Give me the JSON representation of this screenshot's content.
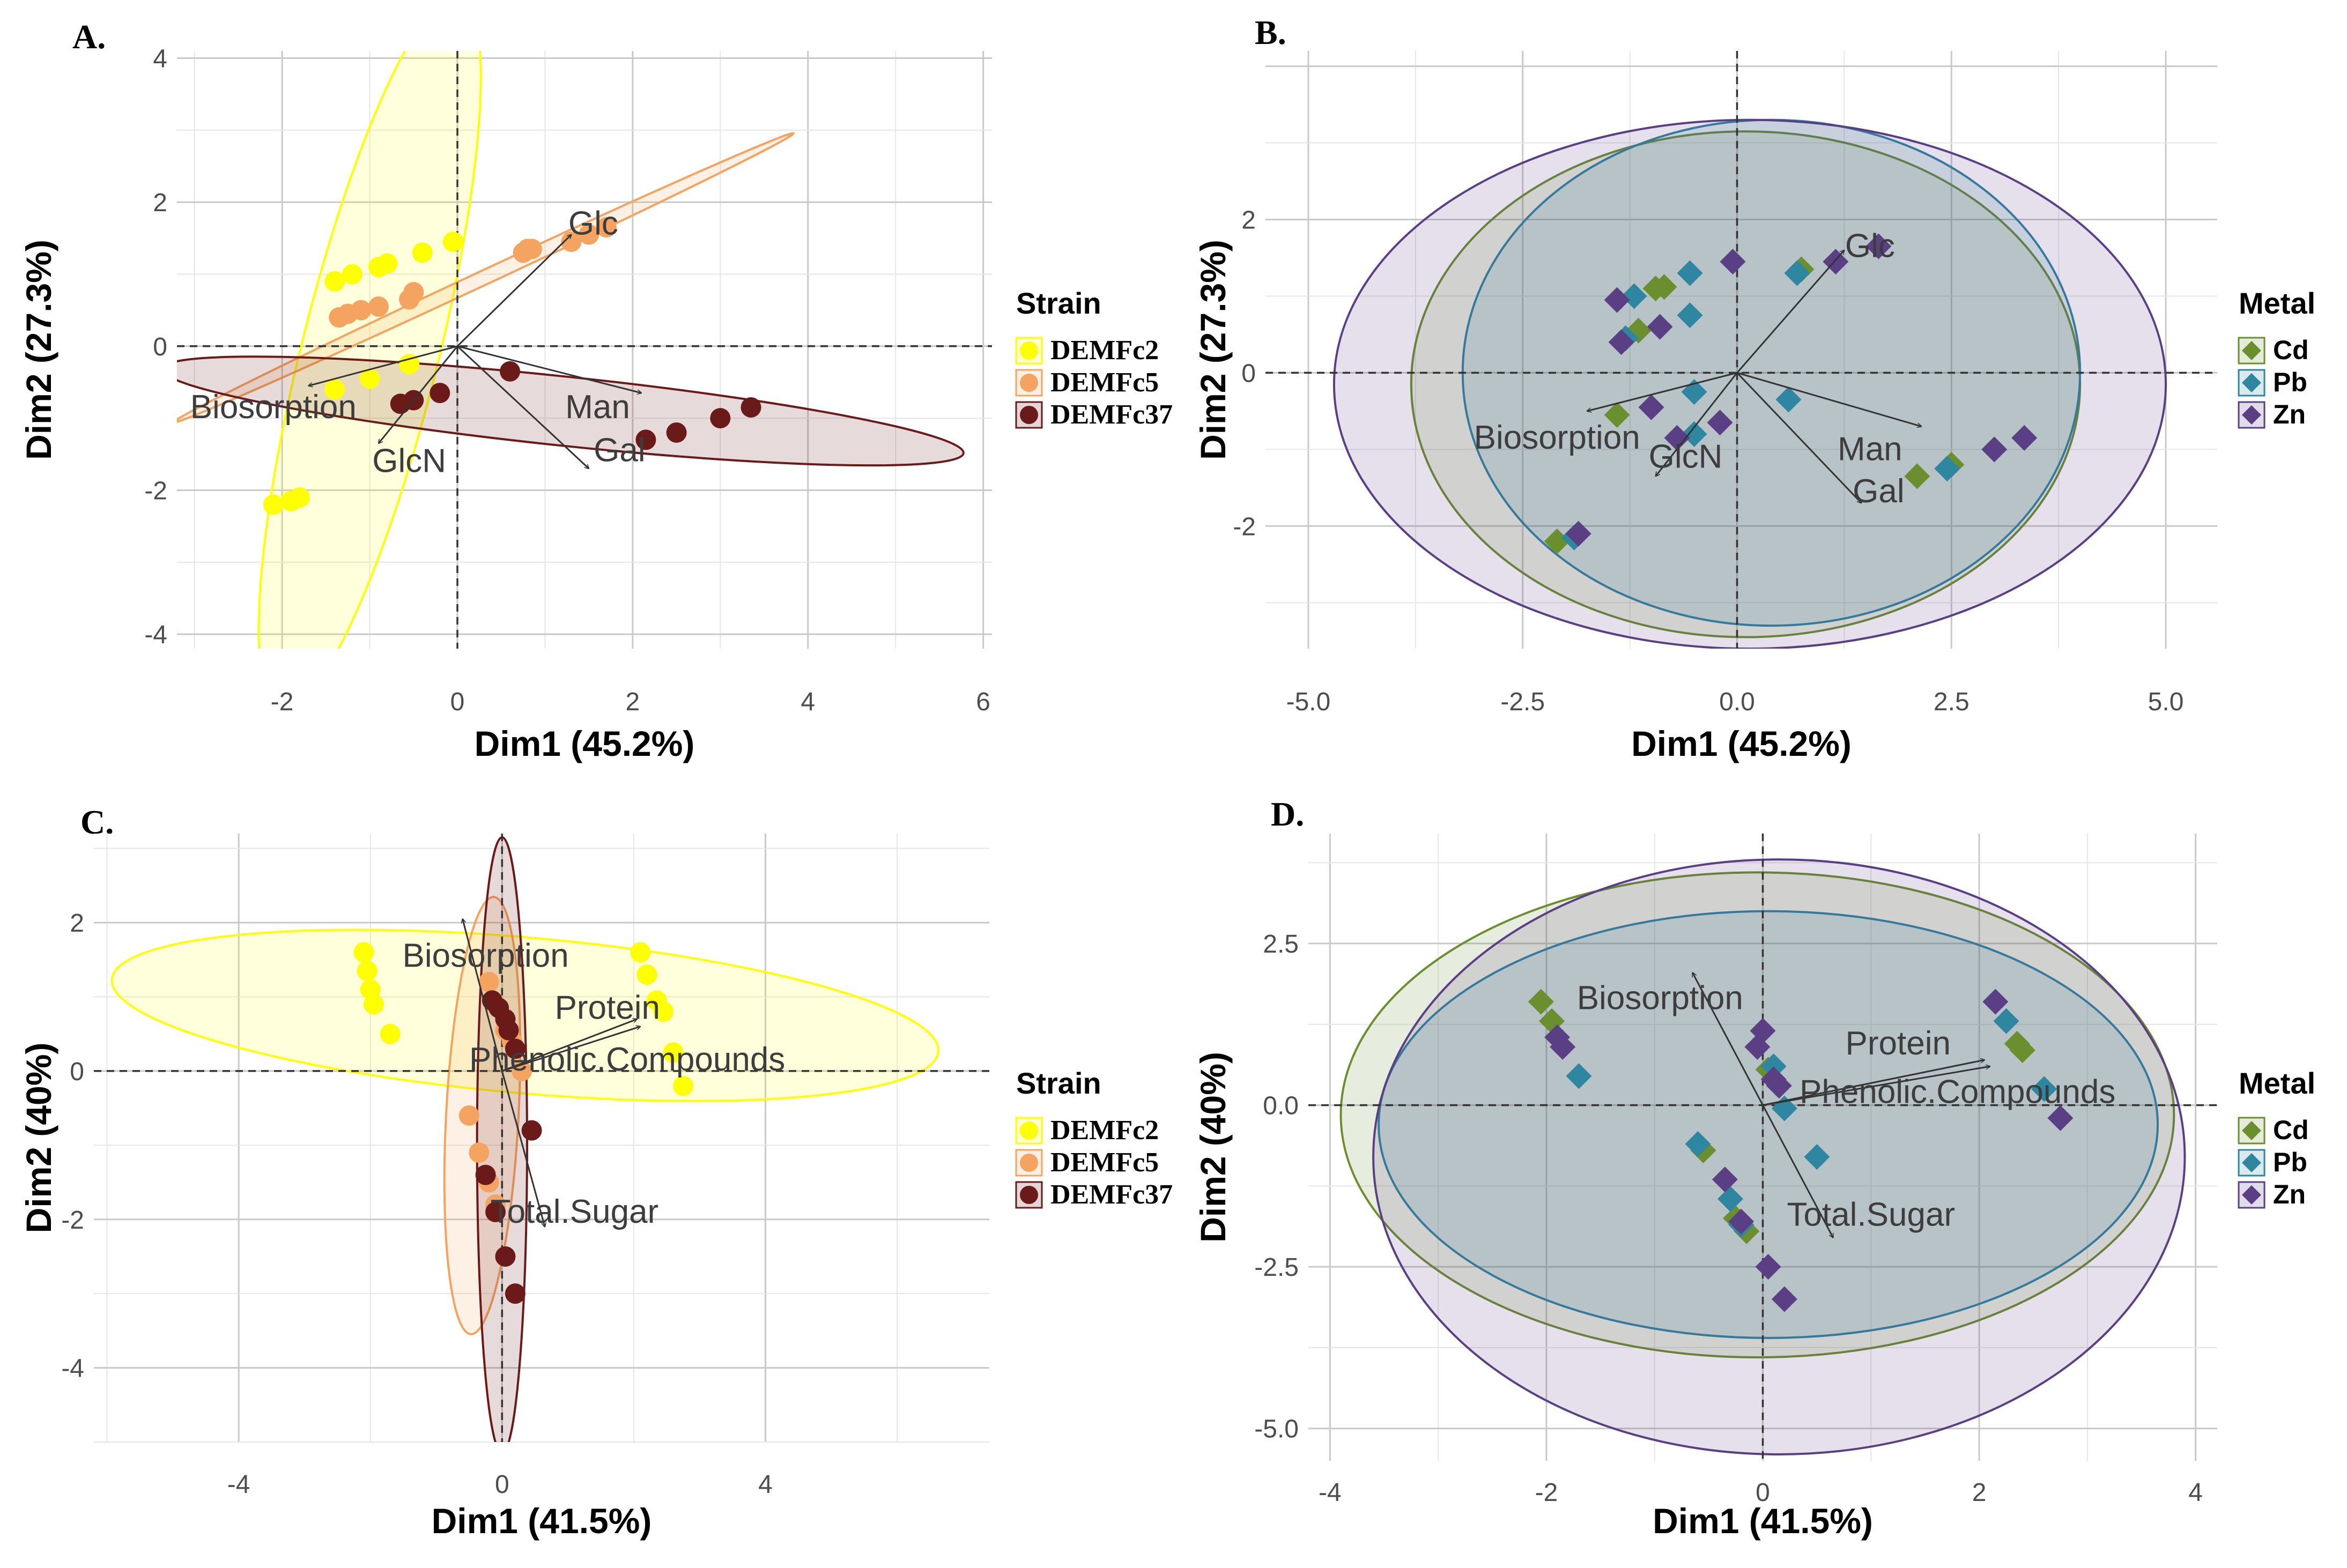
{
  "colors": {
    "DEMFc2": "#ffff00",
    "DEMFc5": "#f4a460",
    "DEMFc37": "#6b1a1a",
    "Cd": "#6b8e2f",
    "Pb": "#2e86a1",
    "Zn": "#5b3f84"
  },
  "chart_data": [
    {
      "panel": "A.",
      "type": "scatter",
      "subtype": "pca-biplot",
      "xlabel": "Dim1 (45.2%)",
      "ylabel": "Dim2 (27.3%)",
      "xlim": [
        -3.2,
        6.1
      ],
      "ylim": [
        -4.2,
        4.1
      ],
      "xticks": [
        -2,
        0,
        2,
        4,
        6
      ],
      "yticks": [
        -4,
        -2,
        0,
        2,
        4
      ],
      "xtick_labels": [
        "-2",
        "0",
        "2",
        "4",
        "6"
      ],
      "ytick_labels": [
        "-4",
        "-2",
        "0",
        "2",
        "4"
      ],
      "legend": {
        "title": "Strain",
        "placement": "right",
        "entries": [
          "DEMFc2",
          "DEMFc5",
          "DEMFc37"
        ]
      },
      "series": [
        {
          "name": "DEMFc2",
          "marker": "circle",
          "points": [
            [
              -1.4,
              0.9
            ],
            [
              -1.2,
              1.0
            ],
            [
              -0.9,
              1.1
            ],
            [
              -0.8,
              1.15
            ],
            [
              -0.4,
              1.3
            ],
            [
              -0.05,
              1.45
            ],
            [
              -1.4,
              -0.6
            ],
            [
              -1.0,
              -0.45
            ],
            [
              -0.55,
              -0.25
            ],
            [
              -2.1,
              -2.2
            ],
            [
              -1.9,
              -2.15
            ],
            [
              -1.8,
              -2.1
            ]
          ]
        },
        {
          "name": "DEMFc5",
          "marker": "circle",
          "points": [
            [
              -1.35,
              0.4
            ],
            [
              -1.25,
              0.45
            ],
            [
              -1.1,
              0.5
            ],
            [
              -0.9,
              0.55
            ],
            [
              -0.55,
              0.65
            ],
            [
              -0.5,
              0.75
            ],
            [
              0.75,
              1.3
            ],
            [
              0.8,
              1.35
            ],
            [
              0.85,
              1.35
            ],
            [
              1.3,
              1.45
            ],
            [
              1.5,
              1.55
            ],
            [
              1.7,
              1.65
            ]
          ]
        },
        {
          "name": "DEMFc37",
          "marker": "circle",
          "points": [
            [
              -0.65,
              -0.8
            ],
            [
              -0.5,
              -0.75
            ],
            [
              -0.2,
              -0.65
            ],
            [
              0.6,
              -0.35
            ],
            [
              2.15,
              -1.3
            ],
            [
              2.5,
              -1.2
            ],
            [
              3.0,
              -1.0
            ],
            [
              3.35,
              -0.85
            ]
          ]
        }
      ],
      "ellipses": [
        {
          "series": "DEMFc2",
          "cx": -1.0,
          "cy": -0.1,
          "rx": 4.2,
          "ry": 0.95,
          "angle_deg": 76
        },
        {
          "series": "DEMFc5",
          "cx": 0.3,
          "cy": 0.95,
          "rx": 3.9,
          "ry": 0.1,
          "angle_deg": 25
        },
        {
          "series": "DEMFc37",
          "cx": 1.2,
          "cy": -0.9,
          "rx": 4.6,
          "ry": 0.48,
          "angle_deg": -6
        }
      ],
      "variables": [
        {
          "name": "Glc",
          "x": 1.3,
          "y": 1.55,
          "lx": 1.55,
          "ly": 1.7
        },
        {
          "name": "Biosorption",
          "x": -1.7,
          "y": -0.55,
          "lx": -2.1,
          "ly": -0.85
        },
        {
          "name": "GlcN",
          "x": -0.9,
          "y": -1.35,
          "lx": -0.55,
          "ly": -1.6
        },
        {
          "name": "Man",
          "x": 2.1,
          "y": -0.65,
          "lx": 1.6,
          "ly": -0.85
        },
        {
          "name": "Gal",
          "x": 1.5,
          "y": -1.7,
          "lx": 1.85,
          "ly": -1.45
        }
      ]
    },
    {
      "panel": "B.",
      "type": "scatter",
      "subtype": "pca-biplot",
      "xlabel": "Dim1 (45.2%)",
      "ylabel": "Dim2 (27.3%)",
      "xlim": [
        -5.5,
        5.6
      ],
      "ylim": [
        -3.6,
        4.2
      ],
      "xticks": [
        -5.0,
        -2.5,
        0.0,
        2.5,
        5.0
      ],
      "yticks": [
        -2,
        0,
        2
      ],
      "xtick_labels": [
        "-5.0",
        "-2.5",
        "0.0",
        "2.5",
        "5.0"
      ],
      "ytick_labels": [
        "-2",
        "0",
        "2"
      ],
      "legend": {
        "title": "Metal",
        "placement": "right",
        "entries": [
          "Cd",
          "Pb",
          "Zn"
        ]
      },
      "series": [
        {
          "name": "Cd",
          "marker": "diamond",
          "points": [
            [
              -0.95,
              1.1
            ],
            [
              -0.85,
              1.12
            ],
            [
              -1.15,
              0.55
            ],
            [
              -1.4,
              -0.55
            ],
            [
              -2.1,
              -2.2
            ],
            [
              0.75,
              1.35
            ],
            [
              2.1,
              -1.35
            ],
            [
              2.5,
              -1.2
            ]
          ]
        },
        {
          "name": "Pb",
          "marker": "diamond",
          "points": [
            [
              -1.2,
              1.0
            ],
            [
              -0.55,
              1.3
            ],
            [
              -0.55,
              0.75
            ],
            [
              -1.3,
              0.45
            ],
            [
              -0.5,
              -0.25
            ],
            [
              -0.5,
              -0.8
            ],
            [
              -1.9,
              -2.15
            ],
            [
              0.7,
              1.3
            ],
            [
              0.6,
              -0.35
            ],
            [
              2.45,
              -1.25
            ]
          ]
        },
        {
          "name": "Zn",
          "marker": "diamond",
          "points": [
            [
              -1.4,
              0.95
            ],
            [
              -0.05,
              1.45
            ],
            [
              -0.9,
              0.6
            ],
            [
              -1.35,
              0.4
            ],
            [
              -1.0,
              -0.45
            ],
            [
              -0.7,
              -0.85
            ],
            [
              -0.2,
              -0.65
            ],
            [
              -1.85,
              -2.1
            ],
            [
              1.15,
              1.45
            ],
            [
              1.65,
              1.65
            ],
            [
              3.0,
              -1.0
            ],
            [
              3.35,
              -0.85
            ]
          ]
        }
      ],
      "ellipses": [
        {
          "series": "Cd",
          "cx": 0.1,
          "cy": -0.15,
          "rx": 3.9,
          "ry": 3.3,
          "angle_deg": 0
        },
        {
          "series": "Pb",
          "cx": 0.4,
          "cy": 0.0,
          "rx": 3.6,
          "ry": 3.3,
          "angle_deg": 0
        },
        {
          "series": "Zn",
          "cx": 0.15,
          "cy": -0.15,
          "rx": 4.85,
          "ry": 3.45,
          "angle_deg": 0
        }
      ],
      "variables": [
        {
          "name": "Glc",
          "x": 1.25,
          "y": 1.6,
          "lx": 1.55,
          "ly": 1.65
        },
        {
          "name": "Biosorption",
          "x": -1.75,
          "y": -0.5,
          "lx": -2.1,
          "ly": -0.85
        },
        {
          "name": "GlcN",
          "x": -0.95,
          "y": -1.35,
          "lx": -0.6,
          "ly": -1.1
        },
        {
          "name": "Man",
          "x": 2.15,
          "y": -0.7,
          "lx": 1.55,
          "ly": -1.0
        },
        {
          "name": "Gal",
          "x": 1.45,
          "y": -1.7,
          "lx": 1.65,
          "ly": -1.55
        }
      ]
    },
    {
      "panel": "C.",
      "type": "scatter",
      "subtype": "pca-biplot",
      "xlabel": "Dim1 (41.5%)",
      "ylabel": "Dim2 (40%)",
      "xlim": [
        -6.2,
        7.4
      ],
      "ylim": [
        -5.0,
        3.2
      ],
      "xticks": [
        -4,
        0,
        4
      ],
      "yticks": [
        -4,
        -2,
        0,
        2
      ],
      "xtick_labels": [
        "-4",
        "0",
        "4"
      ],
      "ytick_labels": [
        "-4",
        "-2",
        "0",
        "2"
      ],
      "legend": {
        "title": "Strain",
        "placement": "right",
        "entries": [
          "DEMFc2",
          "DEMFc5",
          "DEMFc37"
        ]
      },
      "series": [
        {
          "name": "DEMFc2",
          "marker": "circle",
          "points": [
            [
              -2.1,
              1.6
            ],
            [
              -2.05,
              1.35
            ],
            [
              -2.0,
              1.1
            ],
            [
              -1.95,
              0.9
            ],
            [
              -1.7,
              0.5
            ],
            [
              2.1,
              1.6
            ],
            [
              2.2,
              1.3
            ],
            [
              2.35,
              0.95
            ],
            [
              2.45,
              0.8
            ],
            [
              2.6,
              0.25
            ],
            [
              2.75,
              -0.2
            ]
          ]
        },
        {
          "name": "DEMFc5",
          "marker": "circle",
          "points": [
            [
              -0.2,
              1.2
            ],
            [
              -0.1,
              0.9
            ],
            [
              0.05,
              0.55
            ],
            [
              0.15,
              0.4
            ],
            [
              0.3,
              0.0
            ],
            [
              -0.5,
              -0.6
            ],
            [
              -0.35,
              -1.1
            ],
            [
              -0.2,
              -1.5
            ],
            [
              -0.1,
              -1.8
            ]
          ]
        },
        {
          "name": "DEMFc37",
          "marker": "circle",
          "points": [
            [
              -0.15,
              0.95
            ],
            [
              -0.05,
              0.85
            ],
            [
              0.05,
              0.7
            ],
            [
              0.1,
              0.55
            ],
            [
              0.2,
              0.3
            ],
            [
              0.45,
              -0.8
            ],
            [
              -0.25,
              -1.4
            ],
            [
              -0.1,
              -1.9
            ],
            [
              0.05,
              -2.5
            ],
            [
              0.2,
              -3.0
            ]
          ]
        }
      ],
      "ellipses": [
        {
          "series": "DEMFc2",
          "cx": 0.35,
          "cy": 0.75,
          "rx": 6.3,
          "ry": 1.05,
          "angle_deg": -5
        },
        {
          "series": "DEMFc5",
          "cx": -0.3,
          "cy": -0.6,
          "rx": 0.55,
          "ry": 2.95,
          "angle_deg": -3
        },
        {
          "series": "DEMFc37",
          "cx": 0.0,
          "cy": -1.0,
          "rx": 0.38,
          "ry": 4.15,
          "angle_deg": 0
        }
      ],
      "variables": [
        {
          "name": "Biosorption",
          "x": -0.6,
          "y": 2.05,
          "lx": -0.25,
          "ly": 1.55
        },
        {
          "name": "Protein",
          "x": 2.05,
          "y": 0.7,
          "lx": 1.6,
          "ly": 0.85
        },
        {
          "name": "Phenolic.Compounds",
          "x": 2.1,
          "y": 0.6,
          "lx": 1.9,
          "ly": 0.15
        },
        {
          "name": "Total.Sugar",
          "x": 0.65,
          "y": -2.1,
          "lx": 1.1,
          "ly": -1.9
        }
      ]
    },
    {
      "panel": "D.",
      "type": "scatter",
      "subtype": "pca-biplot",
      "xlabel": "Dim1 (41.5%)",
      "ylabel": "Dim2 (40%)",
      "xlim": [
        -4.2,
        4.2
      ],
      "ylim": [
        -5.5,
        4.2
      ],
      "xticks": [
        -4,
        -2,
        0,
        2,
        4
      ],
      "yticks": [
        -5.0,
        -2.5,
        0.0,
        2.5
      ],
      "xtick_labels": [
        "-4",
        "-2",
        "0",
        "2",
        "4"
      ],
      "ytick_labels": [
        "-5.0",
        "-2.5",
        "0.0",
        "2.5"
      ],
      "legend": {
        "title": "Metal",
        "placement": "right",
        "entries": [
          "Cd",
          "Pb",
          "Zn"
        ]
      },
      "series": [
        {
          "name": "Cd",
          "marker": "diamond",
          "points": [
            [
              -2.05,
              1.6
            ],
            [
              -1.95,
              1.3
            ],
            [
              -0.55,
              -0.7
            ],
            [
              -0.25,
              -1.75
            ],
            [
              -0.15,
              -1.95
            ],
            [
              2.35,
              0.95
            ],
            [
              2.4,
              0.85
            ],
            [
              0.05,
              0.55
            ]
          ]
        },
        {
          "name": "Pb",
          "marker": "diamond",
          "points": [
            [
              -1.7,
              0.45
            ],
            [
              -0.6,
              -0.6
            ],
            [
              -0.3,
              -1.45
            ],
            [
              -0.2,
              -1.85
            ],
            [
              0.1,
              0.6
            ],
            [
              0.2,
              -0.05
            ],
            [
              0.5,
              -0.8
            ],
            [
              2.25,
              1.3
            ],
            [
              2.6,
              0.25
            ]
          ]
        },
        {
          "name": "Zn",
          "marker": "diamond",
          "points": [
            [
              -1.9,
              1.05
            ],
            [
              -1.85,
              0.9
            ],
            [
              -0.05,
              0.9
            ],
            [
              0.0,
              1.15
            ],
            [
              0.1,
              0.4
            ],
            [
              0.15,
              0.3
            ],
            [
              -0.35,
              -1.15
            ],
            [
              -0.2,
              -1.8
            ],
            [
              0.05,
              -2.5
            ],
            [
              0.2,
              -3.0
            ],
            [
              2.15,
              1.6
            ],
            [
              2.75,
              -0.2
            ]
          ]
        }
      ],
      "ellipses": [
        {
          "series": "Cd",
          "cx": -0.05,
          "cy": -0.15,
          "rx": 3.85,
          "ry": 3.75,
          "angle_deg": 0
        },
        {
          "series": "Pb",
          "cx": 0.05,
          "cy": -0.3,
          "rx": 3.6,
          "ry": 3.3,
          "angle_deg": 0
        },
        {
          "series": "Zn",
          "cx": 0.15,
          "cy": -0.8,
          "rx": 3.75,
          "ry": 4.6,
          "angle_deg": 0
        }
      ],
      "variables": [
        {
          "name": "Biosorption",
          "x": -0.65,
          "y": 2.05,
          "lx": -0.95,
          "ly": 1.65
        },
        {
          "name": "Protein",
          "x": 2.05,
          "y": 0.7,
          "lx": 1.25,
          "ly": 0.95
        },
        {
          "name": "Phenolic.Compounds",
          "x": 2.1,
          "y": 0.6,
          "lx": 1.8,
          "ly": 0.2
        },
        {
          "name": "Total.Sugar",
          "x": 0.65,
          "y": -2.05,
          "lx": 1.0,
          "ly": -1.7
        }
      ]
    }
  ]
}
